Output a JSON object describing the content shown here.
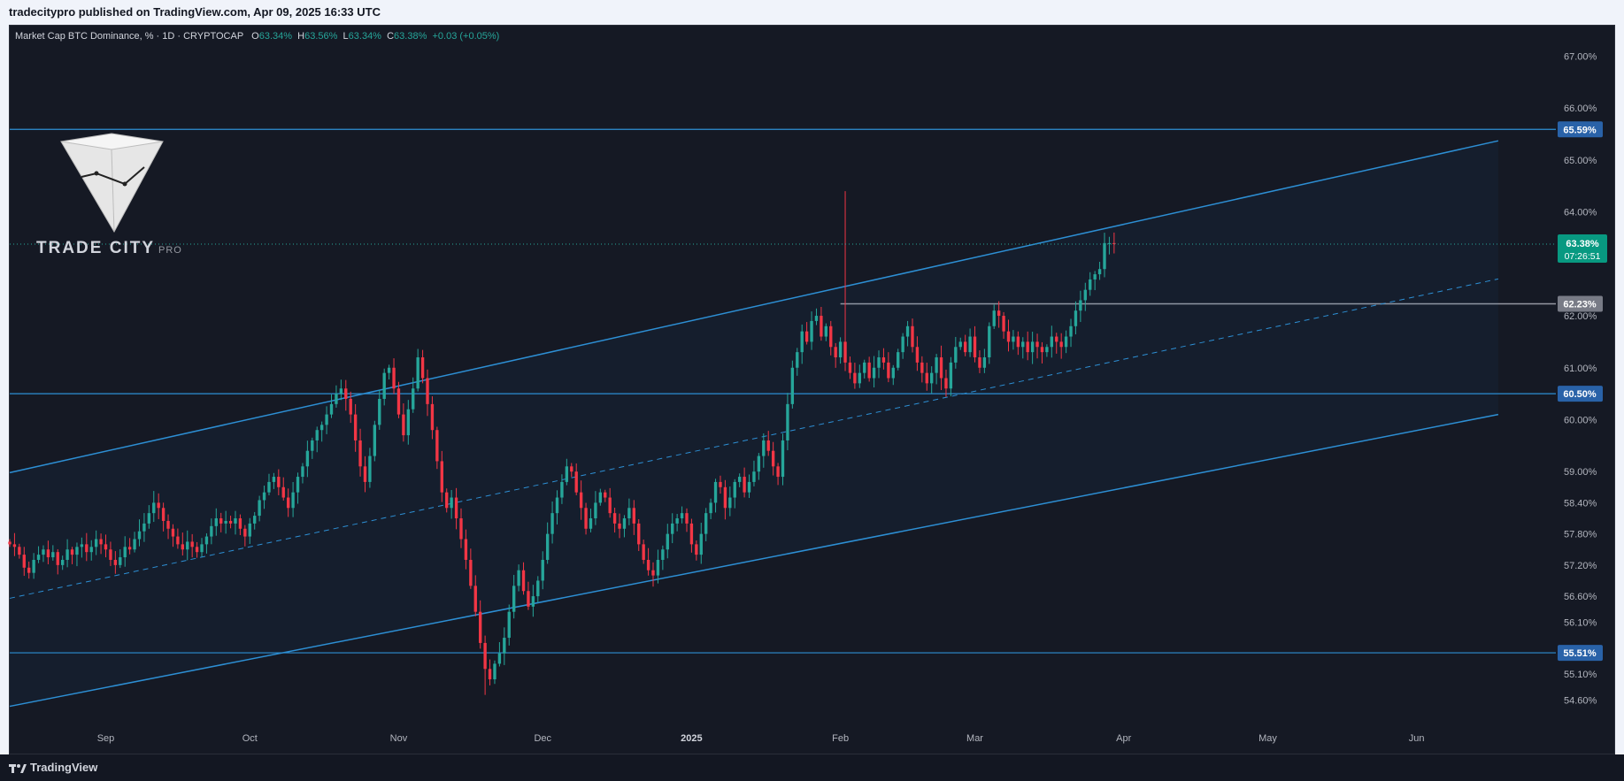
{
  "header": {
    "publisher_line": "tradecitypro published on TradingView.com, Apr 09, 2025 16:33 UTC"
  },
  "legend": {
    "symbol": "Market Cap BTC Dominance, % · 1D · CRYPTOCAP",
    "o_label": "O",
    "o_value": "63.34%",
    "h_label": "H",
    "h_value": "63.56%",
    "l_label": "L",
    "l_value": "63.34%",
    "c_label": "C",
    "c_value": "63.38%",
    "change": "+0.03 (+0.05%)"
  },
  "watermark": {
    "brand": "TRADE CITY",
    "brand_suffix": "PRO"
  },
  "footer": {
    "brand": "TradingView"
  },
  "colors": {
    "background": "#151924",
    "up_candle": "#26a69a",
    "down_candle": "#f23645",
    "line_blue": "#2d8fd4",
    "grey_level": "#9598a1",
    "axis_text": "#b2b5be"
  },
  "chart_data": {
    "type": "candlestick",
    "title": "",
    "xlabel": "",
    "ylabel": "",
    "ylim": [
      54.2,
      67.4
    ],
    "grid": false,
    "y_ticks": [
      "67.00%",
      "66.00%",
      "65.00%",
      "64.00%",
      "62.00%",
      "61.00%",
      "60.00%",
      "59.00%",
      "58.40%",
      "57.80%",
      "57.20%",
      "56.60%",
      "56.10%",
      "55.10%",
      "54.60%"
    ],
    "y_tick_values": [
      67.0,
      66.0,
      65.0,
      64.0,
      62.0,
      61.0,
      60.0,
      59.0,
      58.4,
      57.8,
      57.2,
      56.6,
      56.1,
      55.1,
      54.6
    ],
    "x_ticks": [
      {
        "label": "Sep",
        "date": "2024-09-01",
        "bold": false
      },
      {
        "label": "Oct",
        "date": "2024-10-01",
        "bold": false
      },
      {
        "label": "Nov",
        "date": "2024-11-01",
        "bold": false
      },
      {
        "label": "Dec",
        "date": "2024-12-01",
        "bold": false
      },
      {
        "label": "2025",
        "date": "2025-01-01",
        "bold": true
      },
      {
        "label": "Feb",
        "date": "2025-02-01",
        "bold": false
      },
      {
        "label": "Mar",
        "date": "2025-03-01",
        "bold": false
      },
      {
        "label": "Apr",
        "date": "2025-04-01",
        "bold": false
      },
      {
        "label": "May",
        "date": "2025-05-01",
        "bold": false
      },
      {
        "label": "Jun",
        "date": "2025-06-01",
        "bold": false
      }
    ],
    "date_range": [
      "2024-08-12",
      "2025-06-30"
    ],
    "price_labels": [
      {
        "text": "65.59%",
        "value": 65.59,
        "style": "blue"
      },
      {
        "text": "62.23%",
        "value": 62.23,
        "style": "grey"
      },
      {
        "text": "60.50%",
        "value": 60.5,
        "style": "blue"
      },
      {
        "text": "55.51%",
        "value": 55.51,
        "style": "blue"
      }
    ],
    "last_price": {
      "text": "63.38%",
      "countdown": "07:26:51",
      "value": 63.38
    },
    "horizontal_levels": [
      {
        "value": 65.59,
        "color": "blue",
        "from": "2024-08-12"
      },
      {
        "value": 60.5,
        "color": "blue",
        "from": "2024-08-12"
      },
      {
        "value": 55.51,
        "color": "blue",
        "from": "2024-08-12"
      },
      {
        "value": 62.23,
        "color": "grey",
        "from": "2025-02-01"
      }
    ],
    "trendlines": [
      {
        "name": "channel-top",
        "style": "solid",
        "p1": [
          "2024-08-12",
          58.98
        ],
        "p2": [
          "2025-06-18",
          65.37
        ]
      },
      {
        "name": "channel-mid",
        "style": "dashed",
        "p1": [
          "2024-08-12",
          56.56
        ],
        "p2": [
          "2025-06-18",
          62.71
        ]
      },
      {
        "name": "channel-bottom",
        "style": "solid",
        "p1": [
          "2024-08-12",
          54.48
        ],
        "p2": [
          "2025-06-18",
          60.1
        ]
      }
    ],
    "candle_start_date": "2024-08-12",
    "candle_step_days": 1,
    "closes": [
      57.6,
      57.55,
      57.4,
      57.15,
      57.05,
      57.3,
      57.4,
      57.5,
      57.35,
      57.45,
      57.2,
      57.3,
      57.5,
      57.4,
      57.55,
      57.6,
      57.45,
      57.55,
      57.7,
      57.6,
      57.5,
      57.3,
      57.2,
      57.35,
      57.55,
      57.5,
      57.7,
      57.85,
      58.0,
      58.2,
      58.4,
      58.3,
      58.05,
      57.9,
      57.75,
      57.6,
      57.5,
      57.65,
      57.55,
      57.45,
      57.6,
      57.75,
      57.95,
      58.1,
      58.0,
      58.05,
      58.0,
      58.1,
      57.9,
      57.75,
      58.0,
      58.15,
      58.45,
      58.6,
      58.8,
      58.9,
      58.7,
      58.5,
      58.3,
      58.6,
      58.9,
      59.1,
      59.4,
      59.6,
      59.8,
      59.9,
      60.1,
      60.3,
      60.5,
      60.6,
      60.4,
      60.1,
      59.6,
      59.1,
      58.8,
      59.3,
      59.9,
      60.4,
      60.9,
      61.0,
      60.6,
      60.1,
      59.7,
      60.2,
      60.6,
      61.2,
      60.8,
      60.3,
      59.8,
      59.2,
      58.6,
      58.3,
      58.5,
      58.1,
      57.7,
      57.3,
      56.8,
      56.3,
      55.7,
      55.2,
      55.0,
      55.3,
      55.5,
      55.8,
      56.3,
      56.8,
      57.1,
      56.7,
      56.4,
      56.6,
      56.9,
      57.3,
      57.8,
      58.2,
      58.5,
      58.8,
      59.1,
      59.0,
      58.6,
      58.3,
      57.9,
      58.1,
      58.4,
      58.6,
      58.5,
      58.2,
      58.0,
      57.9,
      58.1,
      58.3,
      58.0,
      57.6,
      57.3,
      57.1,
      57.0,
      57.3,
      57.5,
      57.8,
      58.0,
      58.1,
      58.2,
      58.0,
      57.6,
      57.4,
      57.8,
      58.2,
      58.4,
      58.8,
      58.7,
      58.3,
      58.5,
      58.8,
      58.9,
      58.6,
      58.8,
      59.0,
      59.3,
      59.6,
      59.4,
      59.1,
      58.9,
      59.6,
      60.3,
      61.0,
      61.3,
      61.7,
      61.5,
      61.9,
      62.0,
      61.6,
      61.8,
      61.4,
      61.2,
      61.5,
      61.1,
      60.9,
      60.7,
      60.9,
      61.1,
      60.8,
      61.0,
      61.2,
      61.1,
      60.8,
      61.0,
      61.3,
      61.6,
      61.8,
      61.4,
      61.1,
      60.9,
      60.7,
      60.9,
      61.2,
      60.8,
      60.6,
      61.1,
      61.4,
      61.5,
      61.3,
      61.6,
      61.2,
      61.0,
      61.2,
      61.8,
      62.1,
      62.0,
      61.7,
      61.5,
      61.6,
      61.4,
      61.5,
      61.3,
      61.5,
      61.4,
      61.3,
      61.4,
      61.6,
      61.5,
      61.4,
      61.6,
      61.8,
      62.1,
      62.3,
      62.5,
      62.7,
      62.8,
      62.9,
      63.4,
      63.4,
      63.38
    ]
  }
}
